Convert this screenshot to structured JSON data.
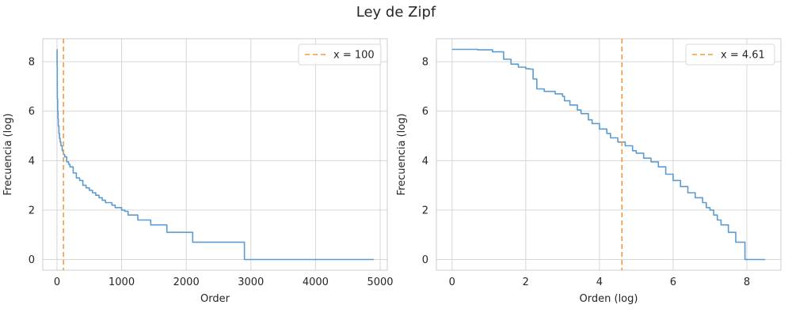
{
  "suptitle": "Ley de Zipf",
  "colors": {
    "series": "#5b9bd0",
    "vline": "#f39a3c",
    "grid": "#d6d6d6",
    "frame": "#cccccc"
  },
  "chart_data": [
    {
      "type": "line",
      "xlabel": "Order",
      "ylabel": "Frecuencia (log)",
      "xlim": [
        -220,
        5110
      ],
      "ylim": [
        -0.43,
        8.93
      ],
      "xticks": [
        0,
        1000,
        2000,
        3000,
        4000,
        5000
      ],
      "yticks": [
        0,
        2,
        4,
        6,
        8
      ],
      "grid": true,
      "legend": {
        "position": "top-right",
        "label": "x = 100"
      },
      "vline": 100,
      "series_style": "steps",
      "series": {
        "x": [
          1,
          2,
          4,
          6,
          10,
          15,
          20,
          30,
          40,
          50,
          60,
          80,
          100,
          120,
          150,
          180,
          200,
          250,
          300,
          350,
          400,
          450,
          500,
          550,
          600,
          650,
          700,
          750,
          800,
          850,
          900,
          950,
          1000,
          1050,
          1100,
          1150,
          1200,
          1250,
          1300,
          1350,
          1400,
          1450,
          1500,
          1550,
          1600,
          1650,
          1700,
          1750,
          1800,
          1850,
          1900,
          1950,
          2000,
          2050,
          2100,
          2200,
          2300,
          2400,
          2500,
          2600,
          2700,
          2800,
          2900,
          3000,
          3500,
          4000,
          4500,
          4900
        ],
        "y": [
          8.5,
          7.8,
          6.9,
          6.5,
          6.0,
          5.7,
          5.4,
          5.1,
          4.9,
          4.75,
          4.6,
          4.4,
          4.25,
          4.15,
          3.95,
          3.85,
          3.75,
          3.5,
          3.3,
          3.2,
          3.0,
          2.9,
          2.8,
          2.7,
          2.6,
          2.5,
          2.4,
          2.3,
          2.3,
          2.2,
          2.1,
          2.1,
          2.0,
          1.95,
          1.8,
          1.8,
          1.8,
          1.6,
          1.6,
          1.6,
          1.6,
          1.4,
          1.4,
          1.4,
          1.4,
          1.4,
          1.1,
          1.1,
          1.1,
          1.1,
          1.1,
          1.1,
          1.1,
          1.1,
          0.7,
          0.7,
          0.7,
          0.7,
          0.7,
          0.7,
          0.7,
          0.7,
          0,
          0,
          0,
          0,
          0,
          0
        ]
      }
    },
    {
      "type": "line",
      "xlabel": "Orden (log)",
      "ylabel": "Frecuencia (log)",
      "xlim": [
        -0.425,
        8.925
      ],
      "ylim": [
        -0.43,
        8.93
      ],
      "xticks": [
        0,
        2,
        4,
        6,
        8
      ],
      "yticks": [
        0,
        2,
        4,
        6,
        8
      ],
      "grid": true,
      "legend": {
        "position": "top-right",
        "label": "x = 4.61"
      },
      "vline": 4.61,
      "series_style": "steps",
      "series": {
        "x": [
          0,
          0.7,
          1.1,
          1.4,
          1.6,
          1.8,
          2.0,
          2.1,
          2.2,
          2.3,
          2.5,
          2.8,
          3.0,
          3.05,
          3.2,
          3.4,
          3.5,
          3.7,
          3.8,
          4.0,
          4.2,
          4.3,
          4.5,
          4.7,
          4.9,
          5.0,
          5.2,
          5.4,
          5.6,
          5.8,
          6.0,
          6.2,
          6.4,
          6.6,
          6.8,
          6.9,
          7.0,
          7.1,
          7.2,
          7.3,
          7.4,
          7.5,
          7.6,
          7.7,
          7.9,
          7.95,
          8.0,
          8.5
        ],
        "y": [
          8.5,
          8.48,
          8.4,
          8.1,
          7.9,
          7.78,
          7.72,
          7.7,
          7.3,
          6.9,
          6.8,
          6.7,
          6.6,
          6.42,
          6.25,
          6.05,
          5.9,
          5.65,
          5.5,
          5.28,
          5.1,
          4.92,
          4.75,
          4.6,
          4.4,
          4.3,
          4.1,
          3.95,
          3.75,
          3.45,
          3.2,
          2.95,
          2.7,
          2.5,
          2.3,
          2.1,
          2.0,
          1.8,
          1.6,
          1.4,
          1.4,
          1.1,
          1.1,
          0.7,
          0.7,
          0,
          0,
          0
        ]
      }
    }
  ]
}
